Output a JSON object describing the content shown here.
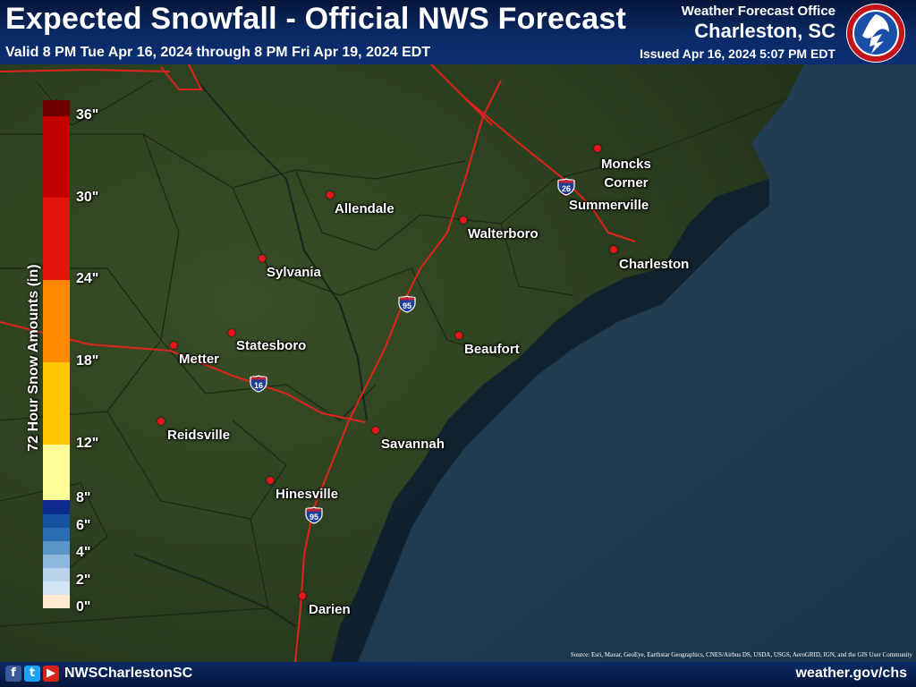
{
  "header": {
    "title": "Expected Snowfall - Official NWS Forecast",
    "valid": "Valid 8 PM Tue Apr 16, 2024 through 8 PM Fri Apr 19, 2024 EDT",
    "office_label": "Weather Forecast Office",
    "office_name": "Charleston, SC",
    "issued": "Issued Apr 16, 2024 5:07 PM EDT",
    "logo_icon": "nws-logo-icon"
  },
  "legend": {
    "title": "72 Hour Snow Amounts (in)",
    "ticks": [
      "36\"",
      "30\"",
      "24\"",
      "18\"",
      "12\"",
      "8\"",
      "6\"",
      "4\"",
      "2\"",
      "0\""
    ],
    "colors": [
      "#fde9cf",
      "#d3e4f5",
      "#b9d3eb",
      "#8fb8de",
      "#5a96c9",
      "#2b6db3",
      "#1552a0",
      "#0c2a8c",
      "#fdfd9a",
      "#ffc400",
      "#ff8a00",
      "#e5140a",
      "#c10000",
      "#9a0000",
      "#6e0000"
    ]
  },
  "cities": [
    {
      "name": "Allendale"
    },
    {
      "name": "Walterboro"
    },
    {
      "name": "Moncks Corner",
      "line1": "Moncks",
      "line2": "Corner"
    },
    {
      "name": "Summerville"
    },
    {
      "name": "Charleston"
    },
    {
      "name": "Sylvania"
    },
    {
      "name": "Statesboro"
    },
    {
      "name": "Metter"
    },
    {
      "name": "Beaufort"
    },
    {
      "name": "Reidsville"
    },
    {
      "name": "Savannah"
    },
    {
      "name": "Hinesville"
    },
    {
      "name": "Darien"
    }
  ],
  "shields": [
    {
      "number": "95"
    },
    {
      "number": "16"
    },
    {
      "number": "26"
    },
    {
      "number": "95"
    }
  ],
  "footer": {
    "handle": "NWSCharlestonSC",
    "website": "weather.gov/chs",
    "source": "Source: Esri, Maxar, GeoEye, Earthstar Geographics, CNES/Airbus DS, USDA, USGS, AeroGRID, IGN, and the GIS User Community",
    "social_icons": [
      "facebook-icon",
      "twitter-icon",
      "youtube-icon"
    ],
    "social_glyphs": [
      "f",
      "t",
      "▶"
    ]
  },
  "colors": {
    "header_bg": "#0b2f72",
    "land": "#2f4220",
    "ocean": "#1d3a52",
    "roads": "#e0231c",
    "city_dot": "#e8141a"
  }
}
